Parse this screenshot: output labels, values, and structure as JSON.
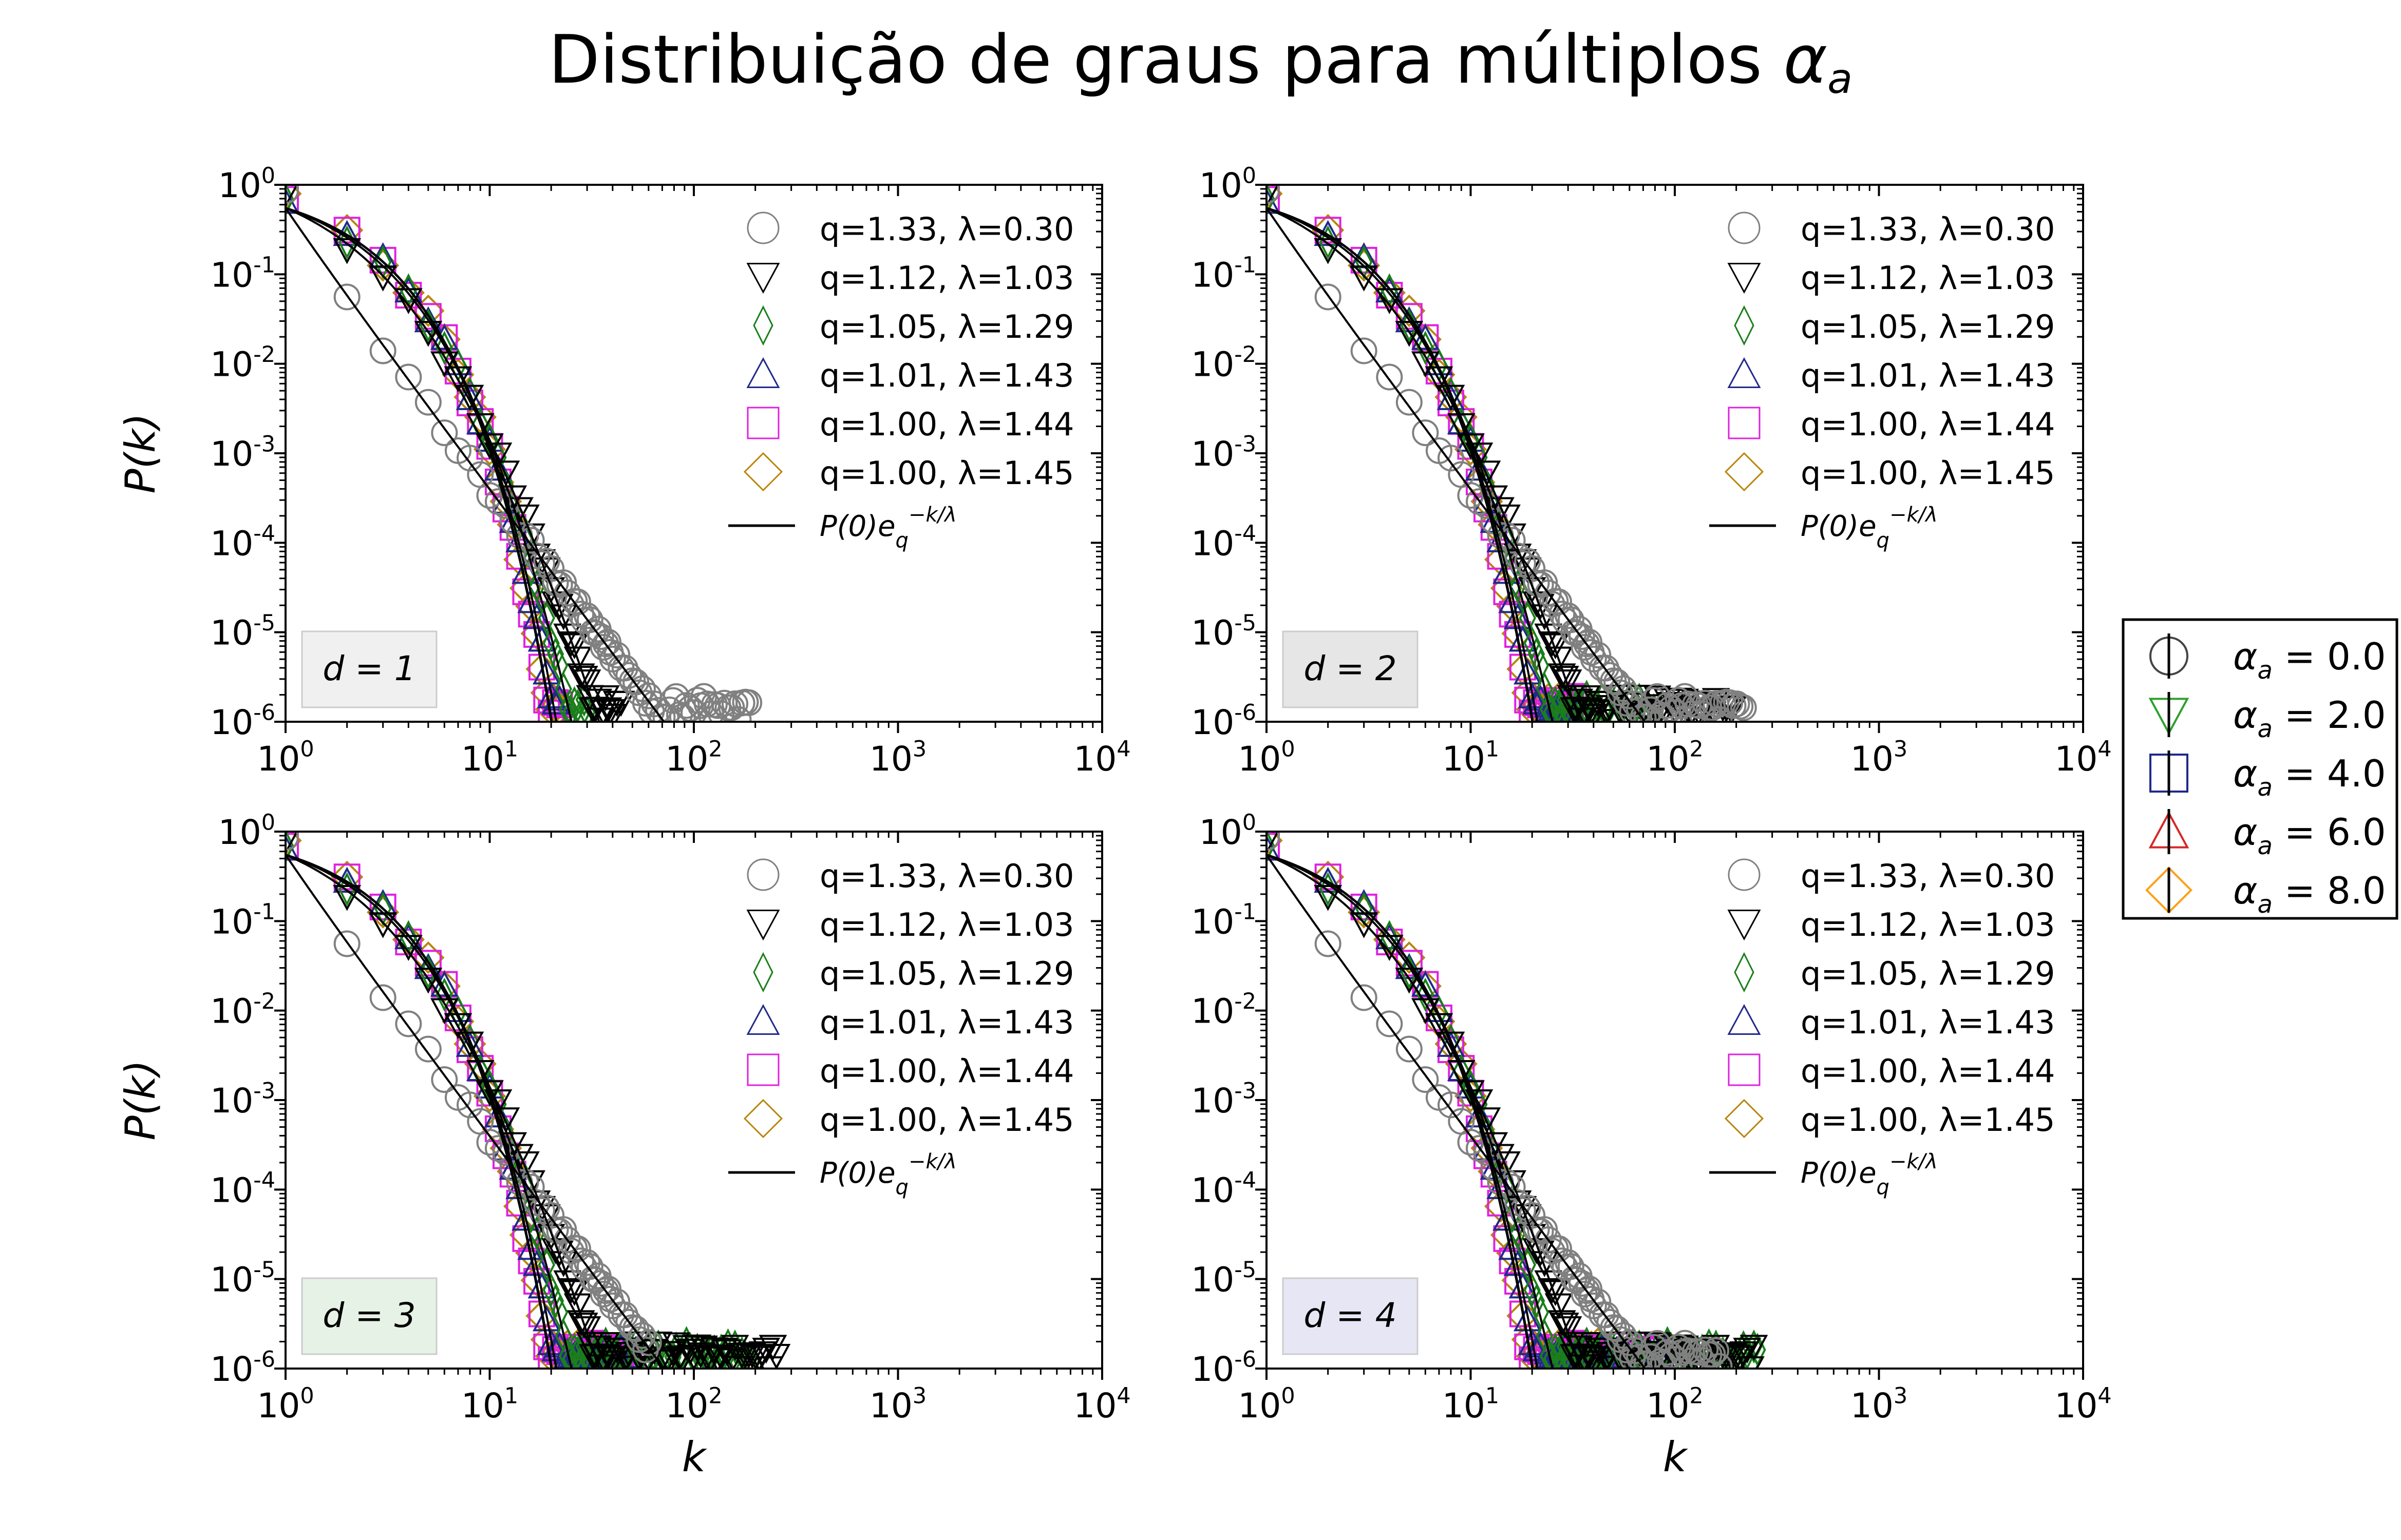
{
  "title": {
    "text": "Distribuição de graus para múltiplos ",
    "symbol": "α",
    "subscript": "a"
  },
  "global_legend": [
    {
      "label": "α_a = 0.0",
      "alpha": "0.0",
      "marker": "circle",
      "color": "#444444"
    },
    {
      "label": "α_a = 2.0",
      "alpha": "2.0",
      "marker": "triangle-down",
      "color": "#2ca02c"
    },
    {
      "label": "α_a = 4.0",
      "alpha": "4.0",
      "marker": "square",
      "color": "#1f2a8a"
    },
    {
      "label": "α_a = 6.0",
      "alpha": "6.0",
      "marker": "triangle-up",
      "color": "#d62728"
    },
    {
      "label": "α_a = 8.0",
      "alpha": "8.0",
      "marker": "diamond",
      "color": "#ff9f1a"
    }
  ],
  "chart_data": [
    {
      "type": "scatter",
      "panel_label": "d = 1",
      "panel_bg": "#f0f0f0",
      "xlabel": "",
      "ylabel": "P(k)",
      "x_scale": "log",
      "y_scale": "log",
      "xlim": [
        1,
        10000
      ],
      "ylim": [
        1e-06,
        1
      ],
      "legend_position": "top-right",
      "series": [
        {
          "name": "q=1.33, λ=0.30",
          "q": 1.33,
          "lambda": 0.3,
          "color": "#808080",
          "marker": "circle",
          "kmax": 190
        },
        {
          "name": "q=1.12, λ=1.03",
          "q": 1.12,
          "lambda": 1.03,
          "color": "#000000",
          "marker": "triangle-down",
          "kmax": 45
        },
        {
          "name": "q=1.05, λ=1.29",
          "q": 1.05,
          "lambda": 1.29,
          "color": "#1a7f1a",
          "marker": "diamond-thin",
          "kmax": 30
        },
        {
          "name": "q=1.01, λ=1.43",
          "q": 1.01,
          "lambda": 1.43,
          "color": "#1f2a8a",
          "marker": "triangle-up",
          "kmax": 22
        },
        {
          "name": "q=1.00, λ=1.44",
          "q": 1.0,
          "lambda": 1.44,
          "color": "#e020e0",
          "marker": "square",
          "kmax": 22
        },
        {
          "name": "q=1.00, λ=1.45",
          "q": 1.0,
          "lambda": 1.45,
          "color": "#b8860b",
          "marker": "diamond",
          "kmax": 22
        }
      ],
      "fit_label": "P(0)e_q^{-k/λ}"
    },
    {
      "type": "scatter",
      "panel_label": "d = 2",
      "panel_bg": "#e6e6e6",
      "xlabel": "",
      "ylabel": "",
      "x_scale": "log",
      "y_scale": "log",
      "xlim": [
        1,
        10000
      ],
      "ylim": [
        1e-06,
        1
      ],
      "legend_position": "top-right",
      "series": [
        {
          "name": "q=1.33, λ=0.30",
          "q": 1.33,
          "lambda": 0.3,
          "color": "#808080",
          "marker": "circle",
          "kmax": 220
        },
        {
          "name": "q=1.12, λ=1.03",
          "q": 1.12,
          "lambda": 1.03,
          "color": "#000000",
          "marker": "triangle-down",
          "kmax": 200
        },
        {
          "name": "q=1.05, λ=1.29",
          "q": 1.05,
          "lambda": 1.29,
          "color": "#1a7f1a",
          "marker": "diamond-thin",
          "kmax": 80
        },
        {
          "name": "q=1.01, λ=1.43",
          "q": 1.01,
          "lambda": 1.43,
          "color": "#1f2a8a",
          "marker": "triangle-up",
          "kmax": 35
        },
        {
          "name": "q=1.00, λ=1.44",
          "q": 1.0,
          "lambda": 1.44,
          "color": "#e020e0",
          "marker": "square",
          "kmax": 33
        },
        {
          "name": "q=1.00, λ=1.45",
          "q": 1.0,
          "lambda": 1.45,
          "color": "#b8860b",
          "marker": "diamond",
          "kmax": 28
        }
      ],
      "fit_label": "P(0)e_q^{-k/λ}"
    },
    {
      "type": "scatter",
      "panel_label": "d = 3",
      "panel_bg": "#e6f2e6",
      "xlabel": "k",
      "ylabel": "P(k)",
      "x_scale": "log",
      "y_scale": "log",
      "xlim": [
        1,
        10000
      ],
      "ylim": [
        1e-06,
        1
      ],
      "legend_position": "top-right",
      "series": [
        {
          "name": "q=1.33, λ=0.30",
          "q": 1.33,
          "lambda": 0.3,
          "color": "#808080",
          "marker": "circle",
          "kmax": 60
        },
        {
          "name": "q=1.12, λ=1.03",
          "q": 1.12,
          "lambda": 1.03,
          "color": "#000000",
          "marker": "triangle-down",
          "kmax": 260
        },
        {
          "name": "q=1.05, λ=1.29",
          "q": 1.05,
          "lambda": 1.29,
          "color": "#1a7f1a",
          "marker": "diamond-thin",
          "kmax": 200
        },
        {
          "name": "q=1.01, λ=1.43",
          "q": 1.01,
          "lambda": 1.43,
          "color": "#1f2a8a",
          "marker": "triangle-up",
          "kmax": 55
        },
        {
          "name": "q=1.00, λ=1.44",
          "q": 1.0,
          "lambda": 1.44,
          "color": "#e020e0",
          "marker": "square",
          "kmax": 50
        },
        {
          "name": "q=1.00, λ=1.45",
          "q": 1.0,
          "lambda": 1.45,
          "color": "#b8860b",
          "marker": "diamond",
          "kmax": 35
        }
      ],
      "fit_label": "P(0)e_q^{-k/λ}"
    },
    {
      "type": "scatter",
      "panel_label": "d = 4",
      "panel_bg": "#e6e6f5",
      "xlabel": "k",
      "ylabel": "",
      "x_scale": "log",
      "y_scale": "log",
      "xlim": [
        1,
        10000
      ],
      "ylim": [
        1e-06,
        1
      ],
      "legend_position": "top-right",
      "series": [
        {
          "name": "q=1.33, λ=0.30",
          "q": 1.33,
          "lambda": 0.3,
          "color": "#808080",
          "marker": "circle",
          "kmax": 170
        },
        {
          "name": "q=1.12, λ=1.03",
          "q": 1.12,
          "lambda": 1.03,
          "color": "#000000",
          "marker": "triangle-down",
          "kmax": 250
        },
        {
          "name": "q=1.05, λ=1.29",
          "q": 1.05,
          "lambda": 1.29,
          "color": "#1a7f1a",
          "marker": "diamond-thin",
          "kmax": 260
        },
        {
          "name": "q=1.01, λ=1.43",
          "q": 1.01,
          "lambda": 1.43,
          "color": "#1f2a8a",
          "marker": "triangle-up",
          "kmax": 95
        },
        {
          "name": "q=1.00, λ=1.44",
          "q": 1.0,
          "lambda": 1.44,
          "color": "#e020e0",
          "marker": "square",
          "kmax": 85
        },
        {
          "name": "q=1.00, λ=1.45",
          "q": 1.0,
          "lambda": 1.45,
          "color": "#b8860b",
          "marker": "diamond",
          "kmax": 45
        }
      ],
      "fit_label": "P(0)e_q^{-k/λ}"
    }
  ]
}
